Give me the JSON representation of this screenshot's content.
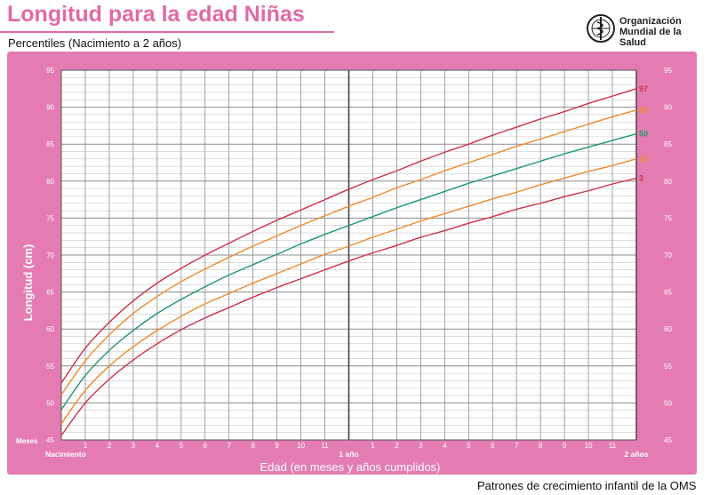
{
  "header": {
    "title": "Longitud para la edad Niñas",
    "subtitle": "Percentiles (Nacimiento a 2 años)"
  },
  "logo": {
    "line1": "Organización",
    "line2": "Mundial de la Salud"
  },
  "footer": {
    "text": "Patrones de crecimiento infantil de la OMS"
  },
  "colors": {
    "panel": "#e47cb2",
    "grid": "#9a9a9a",
    "p97": "#d0304a",
    "p85": "#ee8a2e",
    "p50": "#1e9a64",
    "p15": "#ee8a2e",
    "p3": "#d0304a"
  },
  "chart_data": {
    "type": "line",
    "ylabel": "Longitud (cm)",
    "xlabel": "Edad (en meses y años cumplidos)",
    "ylim": [
      45,
      95
    ],
    "y_ticks": [
      45,
      50,
      55,
      60,
      65,
      70,
      75,
      80,
      85,
      90,
      95
    ],
    "x_ticks": [
      {
        "x": 0,
        "label": "Nacimiento"
      },
      {
        "x": 1,
        "label": "1"
      },
      {
        "x": 2,
        "label": "2"
      },
      {
        "x": 3,
        "label": "3"
      },
      {
        "x": 4,
        "label": "4"
      },
      {
        "x": 5,
        "label": "5"
      },
      {
        "x": 6,
        "label": "6"
      },
      {
        "x": 7,
        "label": "7"
      },
      {
        "x": 8,
        "label": "8"
      },
      {
        "x": 9,
        "label": "9"
      },
      {
        "x": 10,
        "label": "10"
      },
      {
        "x": 11,
        "label": "11"
      },
      {
        "x": 12,
        "label": "1 año"
      },
      {
        "x": 13,
        "label": "1"
      },
      {
        "x": 14,
        "label": "2"
      },
      {
        "x": 15,
        "label": "3"
      },
      {
        "x": 16,
        "label": "4"
      },
      {
        "x": 17,
        "label": "5"
      },
      {
        "x": 18,
        "label": "6"
      },
      {
        "x": 19,
        "label": "7"
      },
      {
        "x": 20,
        "label": "8"
      },
      {
        "x": 21,
        "label": "9"
      },
      {
        "x": 22,
        "label": "10"
      },
      {
        "x": 23,
        "label": "11"
      },
      {
        "x": 24,
        "label": "2 años"
      }
    ],
    "x_unit_label": "Meses",
    "grid": true,
    "x": [
      0,
      1,
      2,
      3,
      4,
      5,
      6,
      7,
      8,
      9,
      10,
      11,
      12,
      13,
      14,
      15,
      16,
      17,
      18,
      19,
      20,
      21,
      22,
      23,
      24
    ],
    "series": [
      {
        "name": "97",
        "values": [
          52.7,
          57.4,
          60.9,
          63.8,
          66.2,
          68.2,
          70.0,
          71.6,
          73.2,
          74.7,
          76.1,
          77.5,
          78.9,
          80.2,
          81.4,
          82.7,
          83.9,
          85.0,
          86.2,
          87.3,
          88.4,
          89.4,
          90.5,
          91.5,
          92.5
        ]
      },
      {
        "name": "85",
        "values": [
          51.1,
          55.7,
          59.2,
          62.1,
          64.4,
          66.4,
          68.1,
          69.7,
          71.2,
          72.6,
          74.0,
          75.3,
          76.6,
          77.8,
          79.1,
          80.2,
          81.4,
          82.5,
          83.6,
          84.7,
          85.7,
          86.7,
          87.7,
          88.7,
          89.6
        ]
      },
      {
        "name": "50",
        "values": [
          49.1,
          53.7,
          57.1,
          59.8,
          62.1,
          64.0,
          65.7,
          67.3,
          68.7,
          70.1,
          71.5,
          72.8,
          74.0,
          75.2,
          76.4,
          77.5,
          78.6,
          79.7,
          80.7,
          81.7,
          82.7,
          83.7,
          84.6,
          85.5,
          86.4
        ]
      },
      {
        "name": "15",
        "values": [
          47.2,
          51.7,
          55.0,
          57.6,
          59.8,
          61.7,
          63.4,
          64.8,
          66.2,
          67.5,
          68.8,
          70.1,
          71.2,
          72.4,
          73.5,
          74.6,
          75.6,
          76.6,
          77.6,
          78.5,
          79.5,
          80.4,
          81.3,
          82.1,
          83.0
        ]
      },
      {
        "name": "3",
        "values": [
          45.6,
          50.0,
          53.2,
          55.8,
          58.0,
          59.9,
          61.5,
          62.9,
          64.3,
          65.6,
          66.8,
          68.0,
          69.2,
          70.3,
          71.3,
          72.4,
          73.3,
          74.3,
          75.2,
          76.2,
          77.0,
          77.9,
          78.7,
          79.6,
          80.4
        ]
      }
    ]
  }
}
